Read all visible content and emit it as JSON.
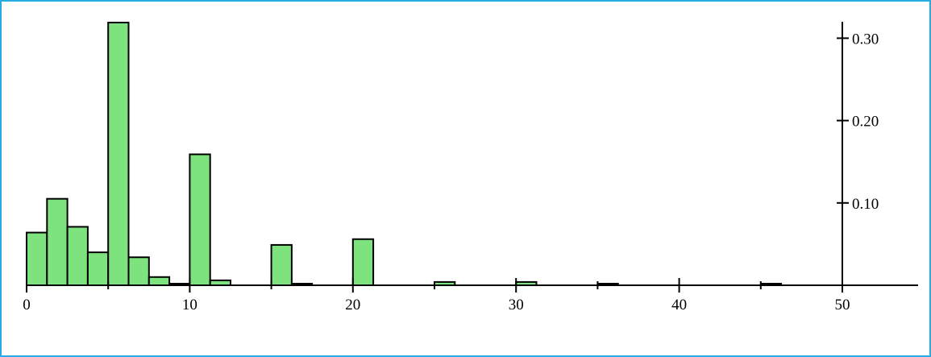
{
  "chart_data": {
    "type": "bar",
    "title": "",
    "xlabel": "",
    "ylabel": "",
    "bin_width": 1.25,
    "xlim": [
      0,
      55
    ],
    "ylim": [
      0,
      0.32
    ],
    "x_ticks": [
      0,
      10,
      20,
      30,
      40,
      50
    ],
    "x_tick_labels": [
      "0",
      "10",
      "20",
      "30",
      "40",
      "50"
    ],
    "y_ticks": [
      0.1,
      0.2,
      0.3
    ],
    "y_tick_labels": [
      "0.10",
      "0.20",
      "0.30"
    ],
    "y_axis_side": "right",
    "grid": false,
    "legend": "none",
    "colors": {
      "bar_fill": "#7ee27e",
      "bar_edge": "#000000",
      "frame": "#29abe2",
      "axis": "#000000"
    },
    "bars": [
      {
        "x0": 0.0,
        "x1": 1.25,
        "value": 0.064
      },
      {
        "x0": 1.25,
        "x1": 2.5,
        "value": 0.105
      },
      {
        "x0": 2.5,
        "x1": 3.75,
        "value": 0.071
      },
      {
        "x0": 3.75,
        "x1": 5.0,
        "value": 0.04
      },
      {
        "x0": 5.0,
        "x1": 6.25,
        "value": 0.319
      },
      {
        "x0": 6.25,
        "x1": 7.5,
        "value": 0.034
      },
      {
        "x0": 7.5,
        "x1": 8.75,
        "value": 0.01
      },
      {
        "x0": 8.75,
        "x1": 10.0,
        "value": 0.0005
      },
      {
        "x0": 10.0,
        "x1": 11.25,
        "value": 0.159
      },
      {
        "x0": 11.25,
        "x1": 12.5,
        "value": 0.006
      },
      {
        "x0": 15.0,
        "x1": 16.25,
        "value": 0.049
      },
      {
        "x0": 16.25,
        "x1": 17.5,
        "value": 0.0005
      },
      {
        "x0": 20.0,
        "x1": 21.25,
        "value": 0.056
      },
      {
        "x0": 25.0,
        "x1": 26.25,
        "value": 0.004
      },
      {
        "x0": 30.0,
        "x1": 31.25,
        "value": 0.004
      },
      {
        "x0": 35.0,
        "x1": 36.25,
        "value": 0.0005
      },
      {
        "x0": 45.0,
        "x1": 46.25,
        "value": 0.0005
      }
    ]
  }
}
